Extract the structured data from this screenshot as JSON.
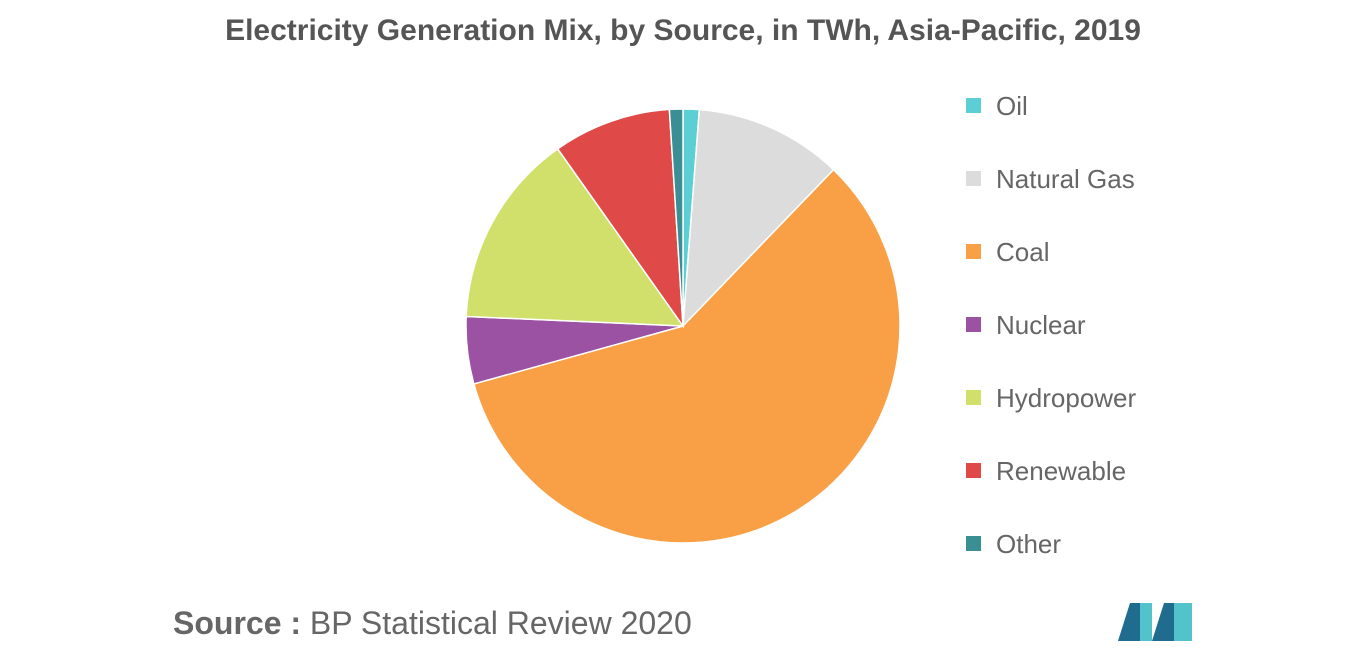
{
  "chart_data": {
    "type": "pie",
    "title": "Electricity Generation Mix, by Source, in TWh, Asia-Pacific, 2019",
    "legend_position": "right",
    "categories": [
      "Oil",
      "Natural Gas",
      "Coal",
      "Nuclear",
      "Hydropower",
      "Renewable",
      "Other"
    ],
    "values": [
      1.2,
      11.0,
      58.5,
      5.0,
      14.5,
      8.8,
      1.0
    ],
    "colors": [
      "#5ccfd4",
      "#dcdcdc",
      "#f9a047",
      "#9c52a3",
      "#d1e06b",
      "#df4a48",
      "#3a8f95"
    ]
  },
  "source": {
    "prefix": "Source :",
    "text": "BP Statistical Review 2020"
  },
  "logo": {
    "icon": "mordor-intelligence-logo-icon",
    "colors": [
      "#1f6c8f",
      "#53c3cb"
    ]
  }
}
